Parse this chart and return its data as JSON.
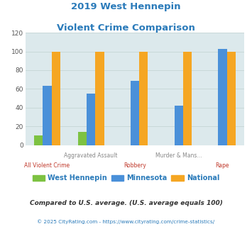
{
  "title_line1": "2019 West Hennepin",
  "title_line2": "Violent Crime Comparison",
  "title_color": "#2b7bba",
  "categories": [
    "All Violent Crime",
    "Aggravated Assault",
    "Robbery",
    "Murder & Mans...",
    "Rape"
  ],
  "top_labels": [
    "",
    "Aggravated Assault",
    "",
    "Murder & Mans...",
    ""
  ],
  "bottom_labels": [
    "All Violent Crime",
    "",
    "Robbery",
    "",
    "Rape"
  ],
  "top_label_color": "#888888",
  "bottom_label_color": "#c0392b",
  "series": [
    {
      "name": "West Hennepin",
      "color": "#7dc242",
      "values": [
        10,
        14,
        0,
        0,
        0
      ]
    },
    {
      "name": "Minnesota",
      "color": "#4a90d9",
      "values": [
        63,
        55,
        69,
        42,
        103
      ]
    },
    {
      "name": "National",
      "color": "#f5a623",
      "values": [
        100,
        100,
        100,
        100,
        100
      ]
    }
  ],
  "ylim": [
    0,
    120
  ],
  "yticks": [
    0,
    20,
    40,
    60,
    80,
    100,
    120
  ],
  "grid_color": "#c8d8d8",
  "bg_color": "#dce9ec",
  "footnote1": "Compared to U.S. average. (U.S. average equals 100)",
  "footnote2": "© 2025 CityRating.com - https://www.cityrating.com/crime-statistics/",
  "footnote1_color": "#333333",
  "footnote2_color": "#2b7bba",
  "legend_text_color": "#2b7bba"
}
